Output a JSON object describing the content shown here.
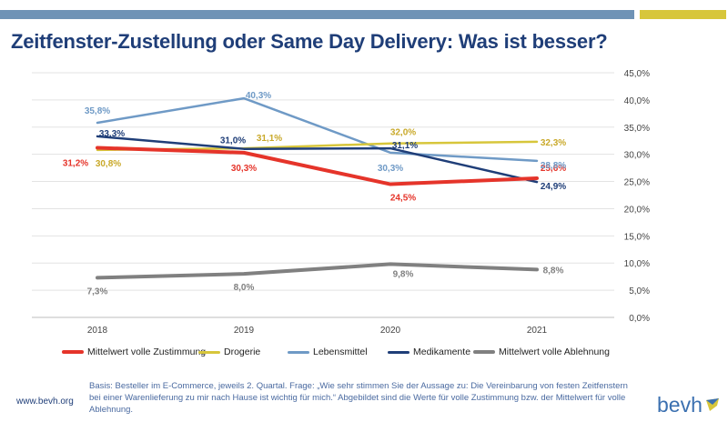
{
  "header": {
    "title": "Zeitfenster-Zustellung oder Same Day Delivery: Was ist besser?"
  },
  "chart_data": {
    "type": "line",
    "categories": [
      "2018",
      "2019",
      "2020",
      "2021"
    ],
    "ylim": [
      0,
      45
    ],
    "y_ticks": [
      "0,0%",
      "5,0%",
      "10,0%",
      "15,0%",
      "20,0%",
      "25,0%",
      "30,0%",
      "35,0%",
      "40,0%",
      "45,0%"
    ],
    "y_tick_values": [
      0,
      5,
      10,
      15,
      20,
      25,
      30,
      35,
      40,
      45
    ],
    "y_axis_side": "right",
    "grid": true,
    "legend_placement": "bottom",
    "series": [
      {
        "name": "Mittelwert volle Zustimmung",
        "color": "#e5342a",
        "width": 4,
        "values": [
          31.2,
          30.3,
          24.5,
          25.6
        ],
        "labels": [
          "31,2%",
          "30,3%",
          "24,5%",
          "25,6%"
        ]
      },
      {
        "name": "Drogerie",
        "color": "#d7c63b",
        "width": 2.5,
        "values": [
          30.8,
          31.1,
          32.0,
          32.3
        ],
        "labels": [
          "30,8%",
          "31,1%",
          "32,0%",
          "32,3%"
        ]
      },
      {
        "name": "Lebensmittel",
        "color": "#6f9ac6",
        "width": 2.5,
        "values": [
          35.8,
          40.3,
          30.3,
          28.8
        ],
        "labels": [
          "35,8%",
          "40,3%",
          "30,3%",
          "28,8%"
        ]
      },
      {
        "name": "Medikamente",
        "color": "#1f3e78",
        "width": 2.5,
        "values": [
          33.3,
          31.0,
          31.1,
          24.9
        ],
        "labels": [
          "33,3%",
          "31,0%",
          "31,1%",
          "24,9%"
        ]
      },
      {
        "name": "Mittelwert volle Ablehnung",
        "color": "#808080",
        "width": 4,
        "values": [
          7.3,
          8.0,
          9.8,
          8.8
        ],
        "labels": [
          "7,3%",
          "8,0%",
          "9,8%",
          "8,8%"
        ]
      }
    ]
  },
  "footer": {
    "url": "www.bevh.org",
    "note": "Basis: Besteller im E-Commerce, jeweils 2. Quartal. Frage: „Wie sehr stimmen Sie der Aussage zu: Die Vereinbarung von festen Zeitfenstern bei einer Warenlieferung zu mir nach Hause ist wichtig für mich.“ Abgebildet sind die Werte für volle Zustimmung bzw. der Mittelwert für volle Ablehnung.",
    "logo": "bevh"
  }
}
